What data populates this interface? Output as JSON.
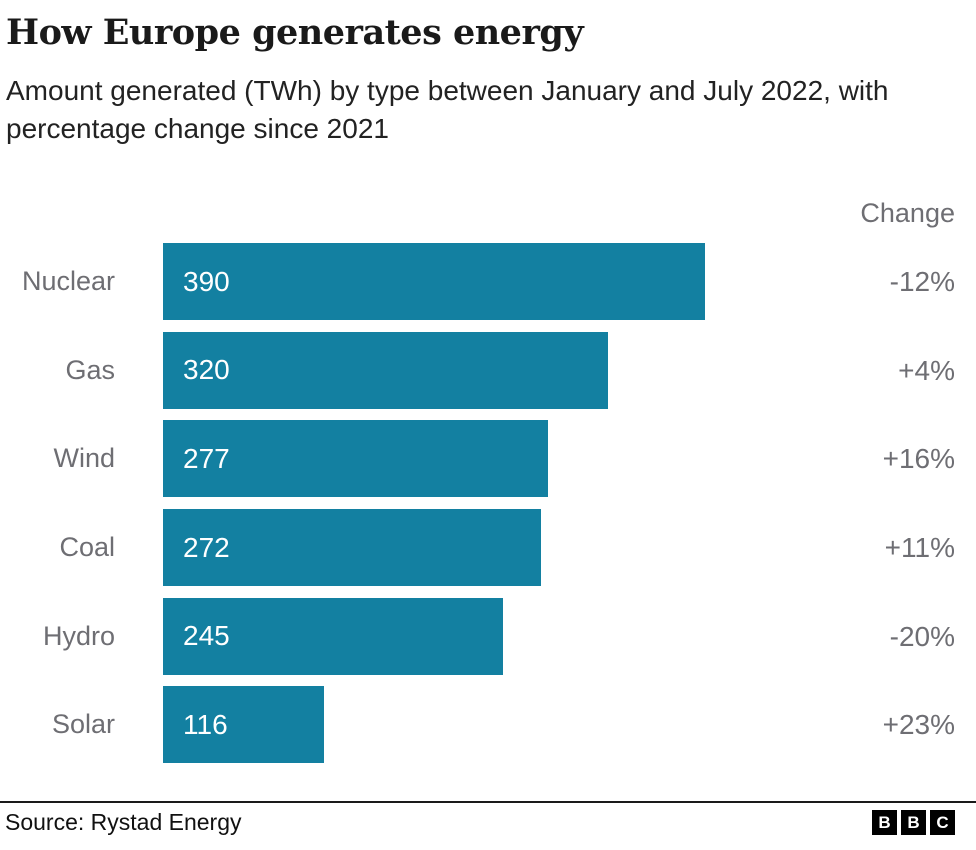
{
  "header": {
    "title": "How Europe generates energy",
    "subtitle": "Amount generated (TWh) by type between January and July 2022, with percentage change since 2021"
  },
  "chart_data": {
    "type": "bar",
    "orientation": "horizontal",
    "title": "How Europe generates energy",
    "subtitle": "Amount generated (TWh) by type between January and July 2022, with percentage change since 2021",
    "unit": "TWh",
    "categories": [
      "Nuclear",
      "Gas",
      "Wind",
      "Coal",
      "Hydro",
      "Solar"
    ],
    "values": [
      390,
      320,
      277,
      272,
      245,
      116
    ],
    "changes": [
      "-12%",
      "+4%",
      "+16%",
      "+11%",
      "-20%",
      "+23%"
    ],
    "change_column_header": "Change",
    "xlim": [
      0,
      390
    ],
    "value_labels_position": "inside-start",
    "grid": false,
    "legend": "none"
  },
  "footer": {
    "source": "Source: Rystad Energy",
    "logo_letters": [
      "B",
      "B",
      "C"
    ]
  },
  "colors": {
    "bar": "#1380A1",
    "value_label": "#ffffff",
    "category_label": "#6e6e73",
    "change_label": "#6e6e73",
    "title_text": "#1a1a1a",
    "background": "#ffffff"
  }
}
